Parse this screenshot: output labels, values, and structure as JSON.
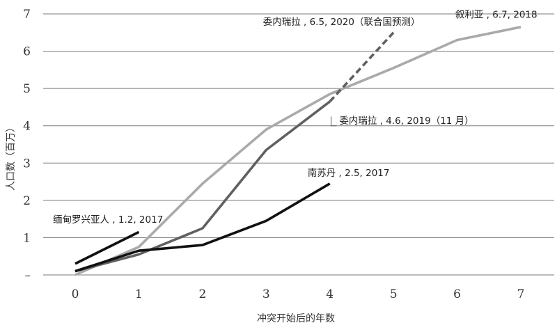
{
  "chart_data": {
    "type": "line",
    "xlabel": "冲突开始后的年数",
    "ylabel": "人口数（百万）",
    "xlim": [
      0,
      7
    ],
    "ylim": [
      0,
      7
    ],
    "x_ticks": [
      "0",
      "1",
      "2",
      "3",
      "4",
      "5",
      "6",
      "7"
    ],
    "y_ticks": [
      "–",
      "1",
      "2",
      "3",
      "4",
      "5",
      "6",
      "7"
    ],
    "grid": "horizontal",
    "series": [
      {
        "key": "syria",
        "color": "#aaaaaa",
        "dash": false,
        "x": [
          0,
          1,
          2,
          3,
          4,
          5,
          6,
          7
        ],
        "y": [
          0.0,
          0.75,
          2.45,
          3.9,
          4.85,
          5.55,
          6.3,
          6.65
        ]
      },
      {
        "key": "venezuela",
        "color": "#606060",
        "dash": false,
        "x": [
          0,
          1,
          2,
          3,
          4
        ],
        "y": [
          0.1,
          0.55,
          1.25,
          3.35,
          4.65
        ]
      },
      {
        "key": "venezuela-forecast",
        "color": "#606060",
        "dash": true,
        "x": [
          4,
          5
        ],
        "y": [
          4.65,
          6.5
        ]
      },
      {
        "key": "south-sudan",
        "color": "#111111",
        "dash": false,
        "x": [
          0,
          1,
          2,
          3,
          4
        ],
        "y": [
          0.1,
          0.65,
          0.8,
          1.45,
          2.45
        ]
      },
      {
        "key": "myanmar",
        "color": "#111111",
        "dash": false,
        "x": [
          0,
          1
        ],
        "y": [
          0.3,
          1.15
        ]
      }
    ],
    "annotations": [
      {
        "key": "venezuela-2020",
        "text": "委内瑞拉 , 6.5, 2020（联合国预测）",
        "x": 2.95,
        "y": 6.7
      },
      {
        "key": "syria-2018",
        "text": "叙利亚 , 6.7, 2018",
        "x": 5.97,
        "y": 6.9
      },
      {
        "key": "venezuela-2019",
        "text": "委内瑞拉 , 4.6, 2019（11 月）",
        "x": 4.15,
        "y": 4.05
      },
      {
        "key": "south-sudan-2017",
        "text": "南苏丹 , 2.5, 2017",
        "x": 3.65,
        "y": 2.65
      },
      {
        "key": "myanmar-2017",
        "text": "缅甸罗兴亚人 , 1.2, 2017",
        "x": -0.35,
        "y": 1.4
      }
    ]
  }
}
